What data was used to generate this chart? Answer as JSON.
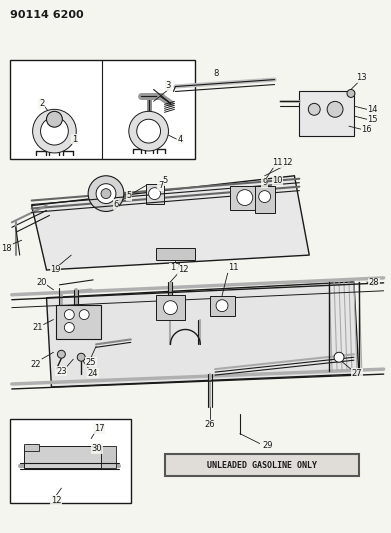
{
  "bg_color": "#f5f5f0",
  "line_color": "#1a1a1a",
  "fig_width": 3.91,
  "fig_height": 5.33,
  "dpi": 100,
  "title_text": "90114 6200",
  "unleaded_text": "UNLEADED GASOLINE ONLY"
}
